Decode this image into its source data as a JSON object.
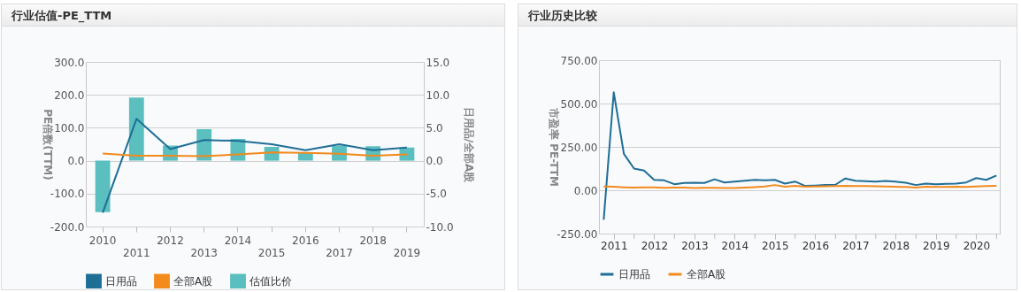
{
  "chart_data": [
    {
      "type": "line",
      "title": "行业估值-PE_TTM",
      "ylabel": "PE倍数(TTM)",
      "y2label": "日用品/全部A股",
      "categories": [
        "2010",
        "2011",
        "2012",
        "2013",
        "2014",
        "2015",
        "2016",
        "2017",
        "2018",
        "2019"
      ],
      "series": [
        {
          "name": "日用品",
          "color": "#1f6e96",
          "values": [
            -158,
            127,
            35,
            63,
            60,
            50,
            32,
            50,
            32,
            40
          ]
        },
        {
          "name": "全部A股",
          "color": "#f28a1c",
          "values": [
            22,
            15,
            15,
            14,
            19,
            25,
            24,
            21,
            15,
            19
          ]
        },
        {
          "name": "估值比价",
          "type": "bar",
          "axis": "y2",
          "color": "#5bbfbf",
          "values": [
            -7.8,
            9.6,
            2.3,
            4.8,
            3.3,
            2.1,
            1.3,
            2.3,
            2.2,
            2.0
          ]
        }
      ],
      "ylim": [
        -200,
        300
      ],
      "yticks": [
        {
          "value": -200,
          "label": "-200.0"
        },
        {
          "value": -100,
          "label": "-100.0"
        },
        {
          "value": 0,
          "label": "0.0"
        },
        {
          "value": 100,
          "label": "100.0"
        },
        {
          "value": 200,
          "label": "200.0"
        },
        {
          "value": 300,
          "label": "300.0"
        }
      ],
      "y2lim": [
        -10,
        15
      ],
      "y2ticks": [
        {
          "value": -10,
          "label": "-10.0"
        },
        {
          "value": -5,
          "label": "-5.0"
        },
        {
          "value": 0,
          "label": "0.0"
        },
        {
          "value": 5,
          "label": "5.0"
        },
        {
          "value": 10,
          "label": "10.0"
        },
        {
          "value": 15,
          "label": "15.0"
        }
      ],
      "grid": "y",
      "legend": "bottom"
    },
    {
      "type": "line",
      "title": "行业历史比较",
      "ylabel": "市盈率 PE-TTM",
      "x": [
        "2011-03-31",
        "2011-06-30",
        "2011-09-30",
        "2011-12-31",
        "2012-03-31",
        "2012-06-30",
        "2012-09-30",
        "2012-12-31",
        "2013-03-31",
        "2013-06-30",
        "2013-09-30",
        "2013-12-31",
        "2014-03-31",
        "2014-06-30",
        "2014-09-30",
        "2014-12-31",
        "2015-03-31",
        "2015-06-30",
        "2015-09-30",
        "2015-12-31",
        "2016-03-31",
        "2016-06-30",
        "2016-09-30",
        "2016-12-31",
        "2017-03-31",
        "2017-06-30",
        "2017-09-30",
        "2017-12-31",
        "2018-03-31",
        "2018-06-30",
        "2018-09-30",
        "2018-12-31",
        "2019-03-31",
        "2019-06-30",
        "2019-09-30",
        "2019-12-31",
        "2020-03-31",
        "2020-06-30",
        "2020-09-30",
        "2020-12-31"
      ],
      "series": [
        {
          "name": "日用品",
          "color": "#1f6e96",
          "values": [
            -170,
            565,
            210,
            125,
            113,
            60,
            57,
            35,
            42,
            43,
            42,
            63,
            45,
            50,
            55,
            60,
            58,
            60,
            38,
            50,
            25,
            27,
            30,
            32,
            68,
            55,
            52,
            50,
            53,
            50,
            43,
            30,
            38,
            35,
            37,
            38,
            45,
            70,
            60,
            85
          ]
        },
        {
          "name": "全部A股",
          "color": "#f28a1c",
          "values": [
            22,
            20,
            17,
            15,
            16,
            16,
            14,
            15,
            15,
            13,
            14,
            14,
            13,
            13,
            15,
            18,
            22,
            30,
            20,
            25,
            20,
            22,
            23,
            24,
            25,
            24,
            24,
            23,
            22,
            20,
            19,
            15,
            20,
            19,
            19,
            20,
            19,
            22,
            24,
            25
          ]
        }
      ],
      "xlim": [
        "2011-02-16",
        "2021-01-30"
      ],
      "xticks": [
        {
          "value": "2011-07-01",
          "label": "2011"
        },
        {
          "value": "2012-07-01",
          "label": "2012"
        },
        {
          "value": "2013-07-01",
          "label": "2013"
        },
        {
          "value": "2014-07-01",
          "label": "2014"
        },
        {
          "value": "2015-07-01",
          "label": "2015"
        },
        {
          "value": "2016-07-01",
          "label": "2016"
        },
        {
          "value": "2017-07-01",
          "label": "2017"
        },
        {
          "value": "2018-07-01",
          "label": "2018"
        },
        {
          "value": "2019-07-01",
          "label": "2019"
        },
        {
          "value": "2020-07-01",
          "label": "2020"
        },
        {
          "value": "2012-01-01",
          "label": null
        },
        {
          "value": "2013-01-01",
          "label": null
        },
        {
          "value": "2014-01-01",
          "label": null
        },
        {
          "value": "2015-01-01",
          "label": null
        },
        {
          "value": "2016-01-01",
          "label": null
        },
        {
          "value": "2017-01-01",
          "label": null
        },
        {
          "value": "2018-01-01",
          "label": null
        },
        {
          "value": "2019-01-01",
          "label": null
        },
        {
          "value": "2020-01-01",
          "label": null
        },
        {
          "value": "2021-01-01",
          "label": null
        }
      ],
      "ylim": [
        -250,
        750
      ],
      "yticks": [
        {
          "value": -250,
          "label": "-250.00"
        },
        {
          "value": 0,
          "label": "0.00"
        },
        {
          "value": 250,
          "label": "250.00"
        },
        {
          "value": 500,
          "label": "500.00"
        },
        {
          "value": 750,
          "label": "750.00"
        }
      ],
      "grid": "y",
      "legend": "bottom"
    }
  ]
}
